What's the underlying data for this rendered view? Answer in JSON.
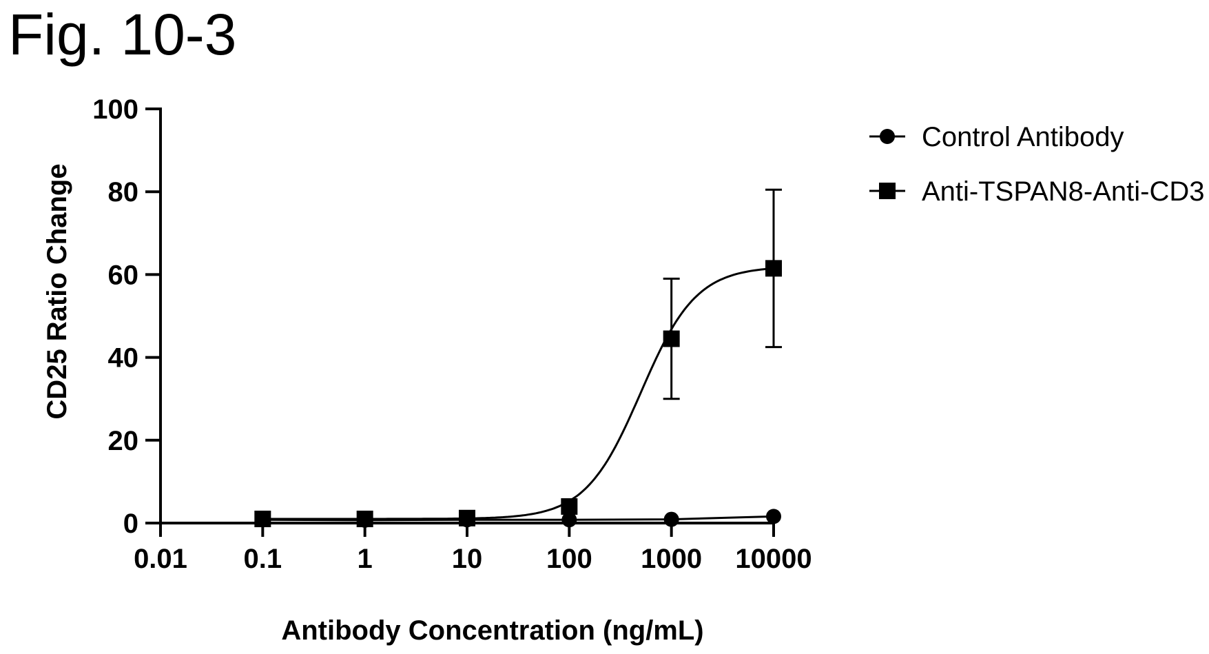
{
  "figure": {
    "label": "Fig. 10-3"
  },
  "chart_data": {
    "type": "line",
    "x_scale": "log",
    "xlabel": "Antibody Concentration (ng/mL)",
    "ylabel": "CD25 Ratio Change",
    "xlim": [
      0.01,
      10000
    ],
    "ylim": [
      0,
      100
    ],
    "x_ticks": [
      0.01,
      0.1,
      1,
      10,
      100,
      1000,
      10000
    ],
    "x_tick_labels": [
      "0.01",
      "0.1",
      "1",
      "10",
      "100",
      "1000",
      "10000"
    ],
    "y_ticks": [
      0,
      20,
      40,
      60,
      80,
      100
    ],
    "y_tick_labels": [
      "0",
      "20",
      "40",
      "60",
      "80",
      "100"
    ],
    "grid": false,
    "legend_position": "top-right",
    "series": [
      {
        "name": "Control Antibody",
        "marker": "circle",
        "color": "#000000",
        "x": [
          0.1,
          1,
          10,
          100,
          1000,
          10000
        ],
        "y": [
          0.8,
          0.7,
          0.8,
          0.8,
          0.9,
          1.6
        ],
        "error": [
          0,
          0,
          0,
          0,
          0,
          0
        ],
        "fit": "flat"
      },
      {
        "name": "Anti-TSPAN8-Anti-CD3",
        "marker": "square",
        "color": "#000000",
        "x": [
          0.1,
          1,
          10,
          100,
          1000,
          10000
        ],
        "y": [
          1.0,
          1.0,
          1.2,
          4.0,
          44.5,
          61.5
        ],
        "error": [
          0,
          0,
          0,
          0,
          14.5,
          19.0
        ],
        "fit": {
          "model": "sigmoid",
          "bottom": 1.0,
          "top": 62.0,
          "log_ec50": 2.7,
          "hill": 1.6
        }
      }
    ]
  }
}
